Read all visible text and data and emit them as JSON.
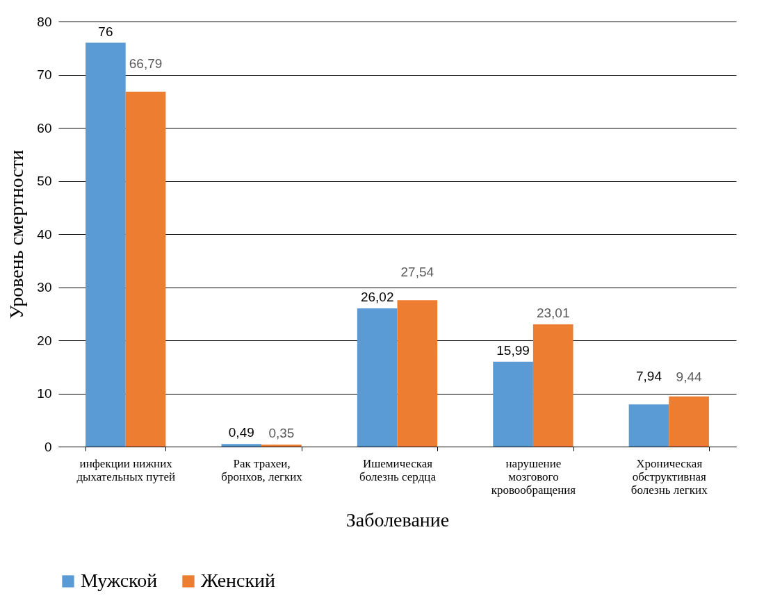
{
  "chart_data": {
    "type": "bar",
    "xlabel": "Заболевание",
    "ylabel": "Уровень смертности",
    "categories": [
      "инфекции нижних дыхательных путей",
      "Рак трахеи, бронхов, легких",
      "Ишемическая болезнь сердца",
      "нарушение мозгового кровообращения",
      "Хроническая обструктивная болезнь легких"
    ],
    "series": [
      {
        "name": "Мужской",
        "color": "#5b9bd5",
        "values": [
          76,
          0.49,
          26.02,
          15.99,
          7.94
        ],
        "value_labels": [
          "76",
          "0,49",
          "26,02",
          "15,99",
          "7,94"
        ]
      },
      {
        "name": "Женский",
        "color": "#ed7d31",
        "values": [
          66.79,
          0.35,
          27.54,
          23.01,
          9.44
        ],
        "value_labels": [
          "66,79",
          "0,35",
          "27,54",
          "23,01",
          "9,44"
        ]
      }
    ],
    "ylim": [
      0,
      80
    ],
    "yticks": [
      0,
      10,
      20,
      30,
      40,
      50,
      60,
      70,
      80
    ],
    "grid": "y",
    "legend": "bottom"
  }
}
